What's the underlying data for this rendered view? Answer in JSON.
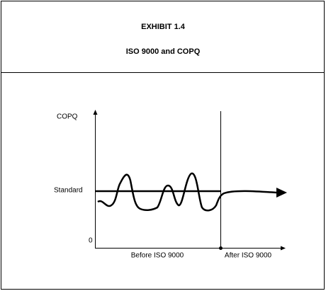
{
  "header": {
    "exhibit": "EXHIBIT 1.4",
    "title": "ISO 9000 and COPQ"
  },
  "diagram": {
    "y_axis_label": "COPQ",
    "standard_label": "Standard",
    "origin_label": "0",
    "before_label": "Before ISO 9000",
    "after_label": "After ISO 9000"
  }
}
